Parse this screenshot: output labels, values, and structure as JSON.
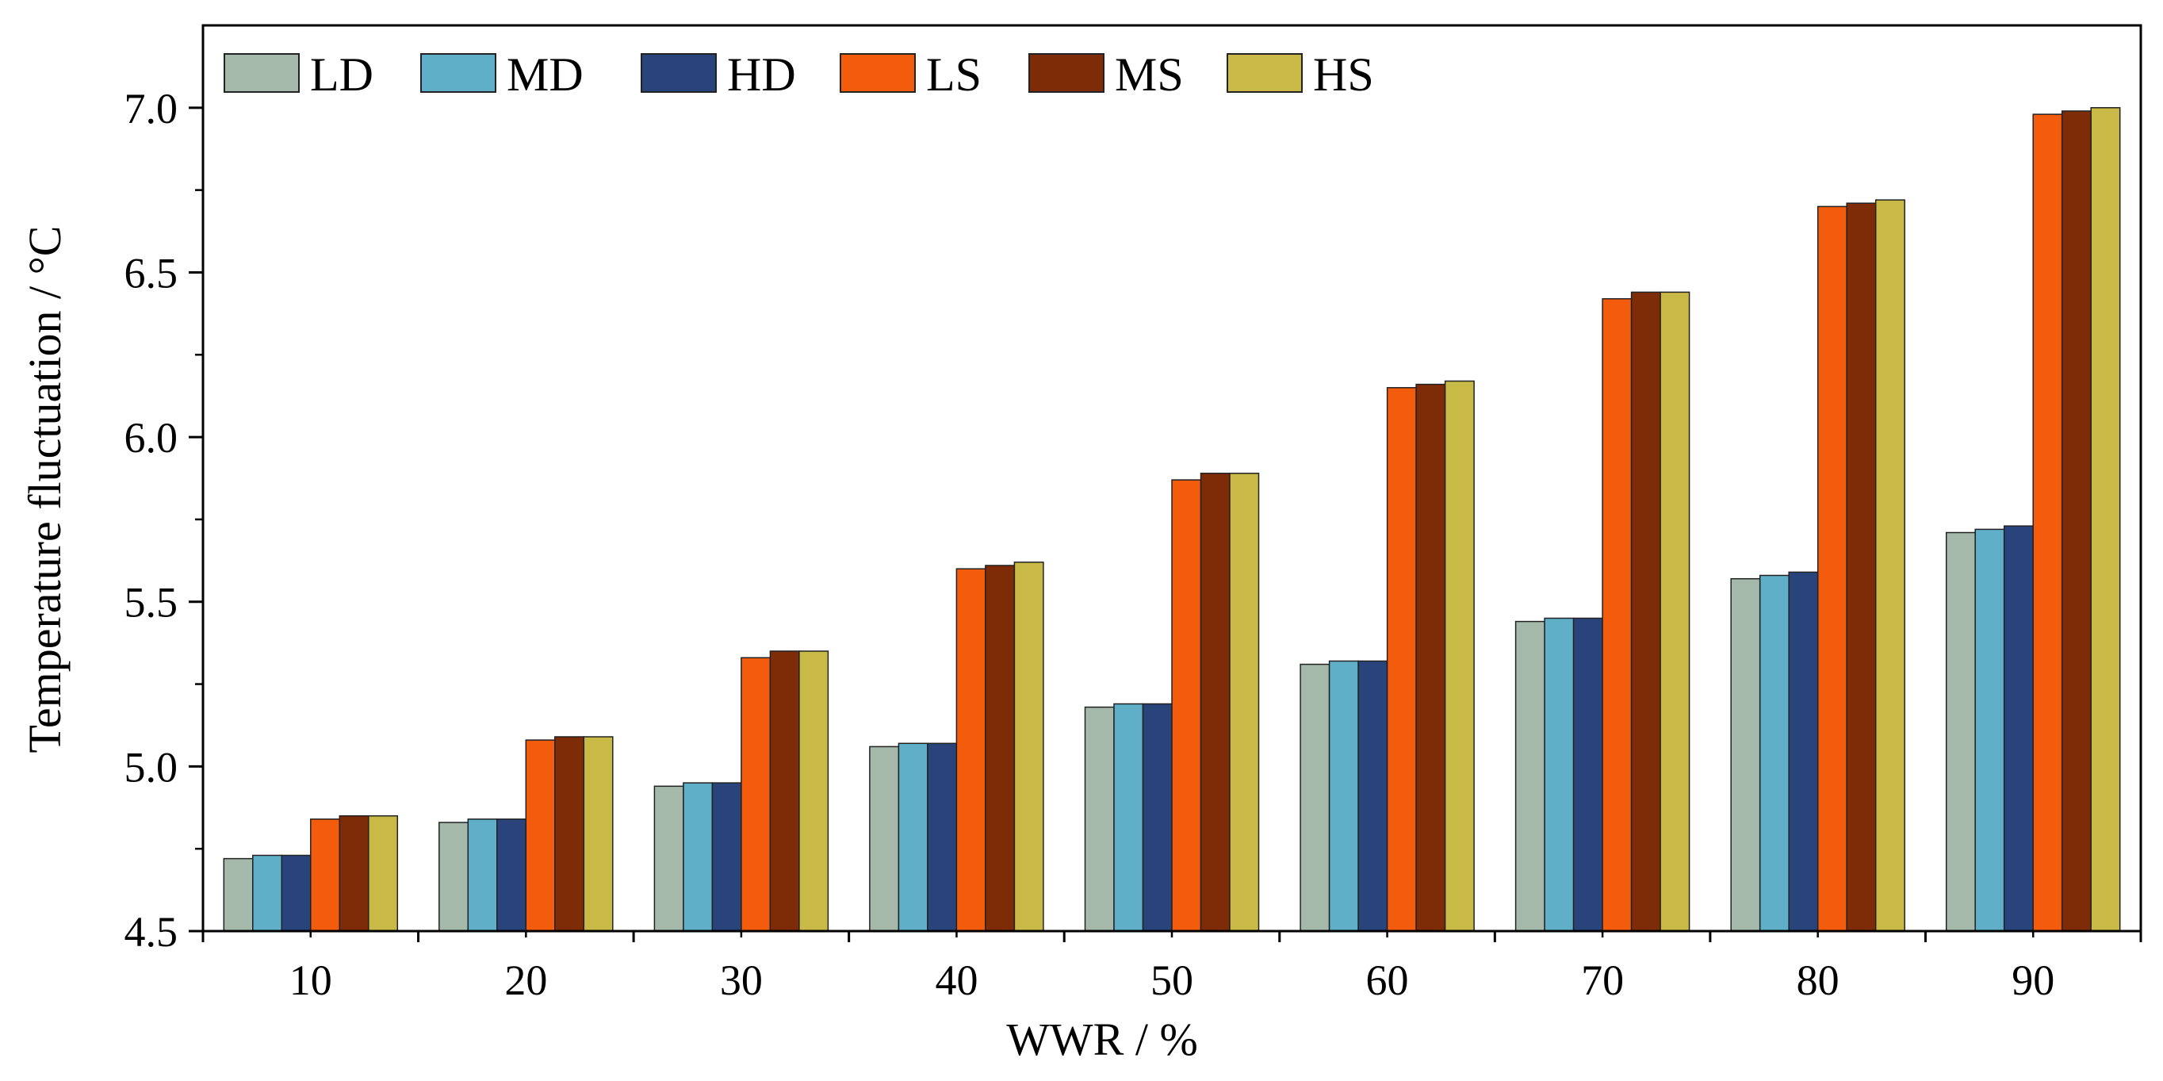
{
  "chart_data": {
    "type": "bar",
    "title": "",
    "xlabel": "WWR / %",
    "ylabel": "Temperature fluctuation / °C",
    "ylim": [
      4.5,
      7.25
    ],
    "yticks": [
      "4.5",
      "5.0",
      "5.5",
      "6.0",
      "6.5",
      "7.0"
    ],
    "legend_position": "top-left",
    "categories": [
      "10",
      "20",
      "30",
      "40",
      "50",
      "60",
      "70",
      "80",
      "90"
    ],
    "series": [
      {
        "name": "LD",
        "color": "#a4b9aa",
        "values": [
          4.72,
          4.83,
          4.94,
          5.06,
          5.18,
          5.31,
          5.44,
          5.57,
          5.71
        ]
      },
      {
        "name": "MD",
        "color": "#5fafc8",
        "values": [
          4.73,
          4.84,
          4.95,
          5.07,
          5.19,
          5.32,
          5.45,
          5.58,
          5.72
        ]
      },
      {
        "name": "HD",
        "color": "#29447b",
        "values": [
          4.73,
          4.84,
          4.95,
          5.07,
          5.19,
          5.32,
          5.45,
          5.59,
          5.73
        ]
      },
      {
        "name": "LS",
        "color": "#f25c0c",
        "values": [
          4.84,
          5.08,
          5.33,
          5.6,
          5.87,
          6.15,
          6.42,
          6.7,
          6.98
        ]
      },
      {
        "name": "MS",
        "color": "#7e2b08",
        "values": [
          4.85,
          5.09,
          5.35,
          5.61,
          5.89,
          6.16,
          6.44,
          6.71,
          6.99
        ]
      },
      {
        "name": "HS",
        "color": "#c9b946",
        "values": [
          4.85,
          5.09,
          5.35,
          5.62,
          5.89,
          6.17,
          6.44,
          6.72,
          7.0
        ]
      }
    ]
  }
}
